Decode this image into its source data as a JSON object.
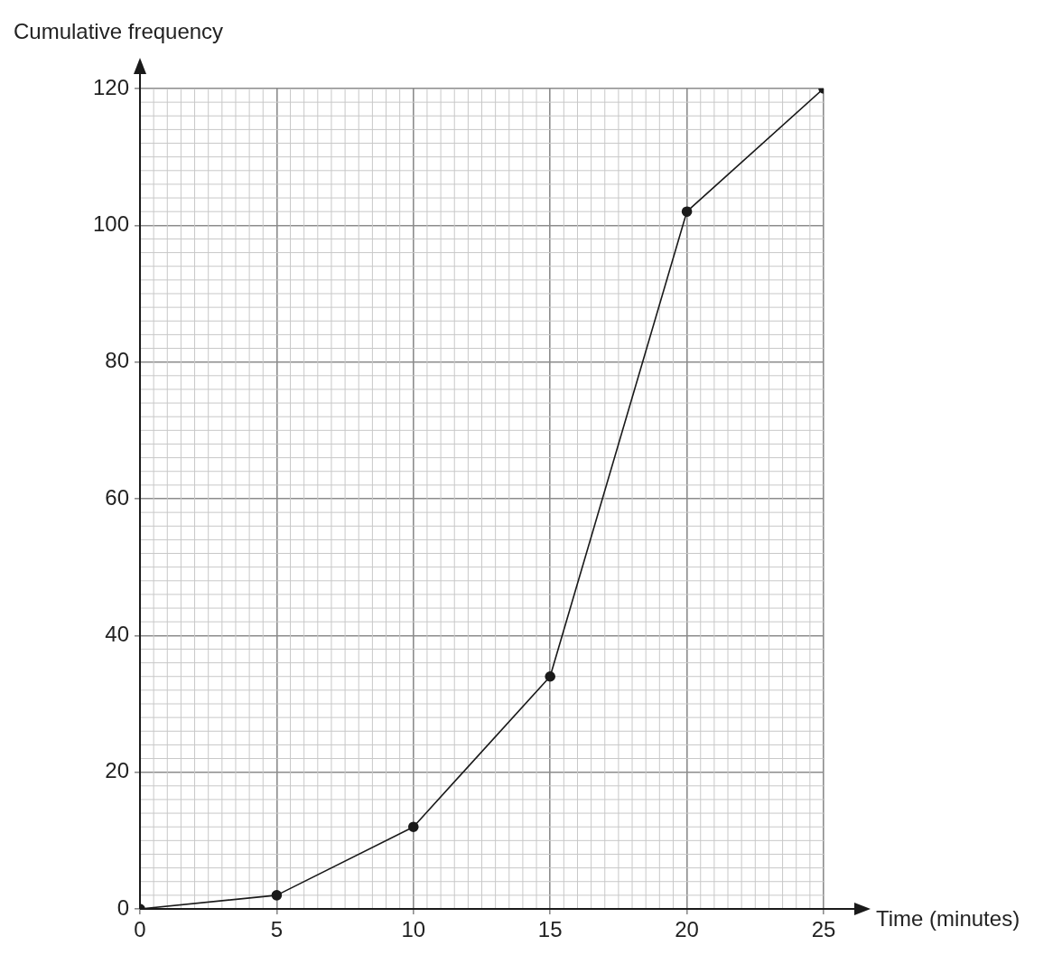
{
  "chart_data": {
    "type": "line",
    "xlabel": "Time (minutes)",
    "ylabel": "Cumulative frequency",
    "x": [
      0,
      5,
      10,
      15,
      20,
      25
    ],
    "series": [
      {
        "color": "#1a1a1a",
        "values": [
          0,
          2,
          12,
          34,
          102,
          120
        ]
      }
    ],
    "xlim": [
      0,
      25
    ],
    "xticks": [
      0,
      5,
      10,
      15,
      20,
      25
    ],
    "ylim": [
      0,
      120
    ],
    "yticks": [
      0,
      20,
      40,
      60,
      80,
      100,
      120
    ],
    "grid": true,
    "marker": "circle",
    "line_style": "solid",
    "legend": false
  }
}
